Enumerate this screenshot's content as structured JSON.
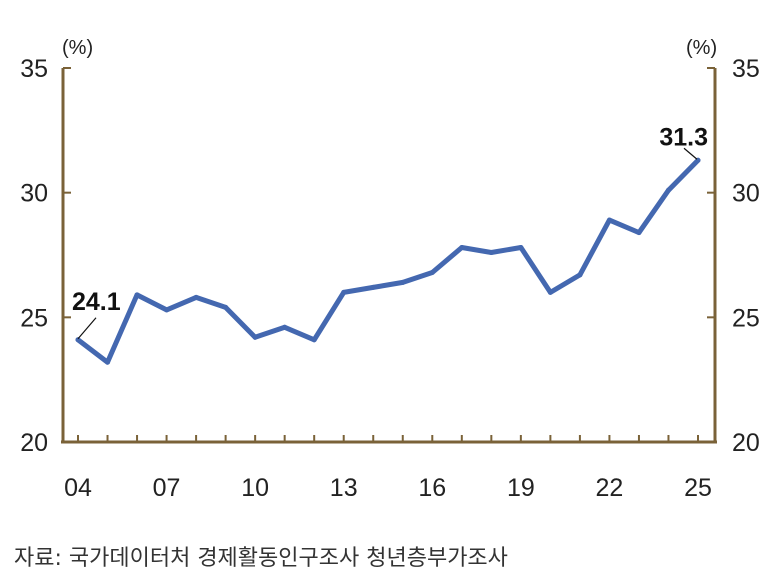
{
  "chart_data": {
    "type": "line",
    "x": [
      "04",
      "05",
      "06",
      "07",
      "08",
      "09",
      "10",
      "11",
      "12",
      "13",
      "14",
      "15",
      "16",
      "17",
      "18",
      "19",
      "20",
      "21",
      "22",
      "23",
      "24",
      "25"
    ],
    "x_tick_labels": [
      "04",
      "07",
      "10",
      "13",
      "16",
      "19",
      "22",
      "25"
    ],
    "series": [
      {
        "values": [
          24.1,
          23.2,
          25.9,
          25.3,
          25.8,
          25.4,
          24.2,
          24.6,
          24.1,
          26.0,
          26.2,
          26.4,
          26.8,
          27.8,
          27.6,
          27.8,
          26.0,
          26.7,
          28.9,
          28.4,
          30.1,
          31.3
        ]
      }
    ],
    "ylim": [
      20,
      35
    ],
    "y_ticks": [
      20,
      25,
      30,
      35
    ],
    "y_unit_left": "(%)",
    "y_unit_right": "(%)",
    "data_labels": [
      {
        "x": "04",
        "text": "24.1"
      },
      {
        "x": "25",
        "text": "31.3"
      }
    ],
    "colors": {
      "line": "#4468b0",
      "axis": "#7a6238"
    },
    "grid": false
  },
  "source": "자료: 국가데이터처 경제활동인구조사 청년층부가조사"
}
